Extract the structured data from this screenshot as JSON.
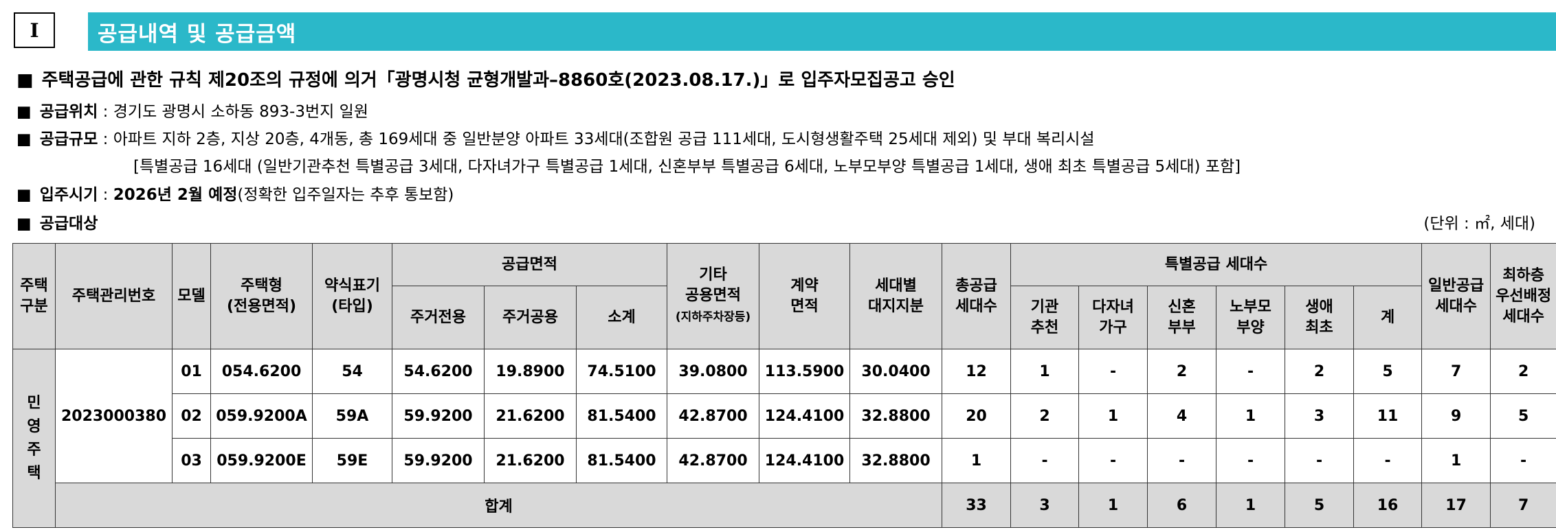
{
  "section": {
    "number": "I",
    "title": "공급내역 및 공급금액"
  },
  "approval": "주택공급에 관한 규칙 제20조의 규정에 의거「광명시청 균형개발과–8860호(2023.08.17.)」로 입주자모집공고 승인",
  "location": {
    "label": "공급위치",
    "value": "경기도 광명시 소하동 893-3번지 일원"
  },
  "scale": {
    "label": "공급규모",
    "value": "아파트 지하 2층, 지상 20층, 4개동, 총 169세대 중 일반분양 아파트 33세대(조합원 공급 111세대, 도시형생활주택 25세대 제외) 및 부대 복리시설",
    "detail": "[특별공급 16세대 (일반기관추천 특별공급 3세대, 다자녀가구 특별공급 1세대, 신혼부부 특별공급 6세대, 노부모부양 특별공급 1세대, 생애 최초 특별공급 5세대) 포함]"
  },
  "movein": {
    "label": "입주시기",
    "bold": "2026년 2월 예정",
    "note": "(정확한 입주일자는 추후 통보함)"
  },
  "target": {
    "label": "공급대상",
    "unit": "(단위 : ㎡, 세대)"
  },
  "table": {
    "headers": {
      "category": [
        "주택",
        "구분"
      ],
      "mgmt_no": "주택관리번호",
      "model": "모델",
      "type": [
        "주택형",
        "(전용면적)"
      ],
      "abbr": [
        "약식표기",
        "(타입)"
      ],
      "supply_area": "공급면적",
      "excl": "주거전용",
      "common": "주거공용",
      "subtotal": "소계",
      "other": [
        "기타",
        "공용면적",
        "(지하주차장등)"
      ],
      "contract": [
        "계약",
        "면적"
      ],
      "land": [
        "세대별",
        "대지지분"
      ],
      "total_supply": [
        "총공급",
        "세대수"
      ],
      "special": "특별공급 세대수",
      "sp_inst": [
        "기관",
        "추천"
      ],
      "sp_multi": [
        "다자녀",
        "가구"
      ],
      "sp_newly": [
        "신혼",
        "부부"
      ],
      "sp_parents": [
        "노부모",
        "부양"
      ],
      "sp_first": [
        "생애",
        "최초"
      ],
      "sp_sum": "계",
      "general": [
        "일반공급",
        "세대수"
      ],
      "lowest": [
        "최하층",
        "우선배정",
        "세대수"
      ]
    },
    "category_chars": [
      "민",
      "영",
      "주",
      "택"
    ],
    "mgmt_no": "2023000380",
    "rows": [
      {
        "model": "01",
        "type": "054.6200",
        "abbr": "54",
        "excl": "54.6200",
        "common": "19.8900",
        "subtotal": "74.5100",
        "other": "39.0800",
        "contract": "113.5900",
        "land": "30.0400",
        "total": "12",
        "inst": "1",
        "multi": "-",
        "newly": "2",
        "parents": "-",
        "first": "2",
        "sum": "5",
        "general": "7",
        "lowest": "2"
      },
      {
        "model": "02",
        "type": "059.9200A",
        "abbr": "59A",
        "excl": "59.9200",
        "common": "21.6200",
        "subtotal": "81.5400",
        "other": "42.8700",
        "contract": "124.4100",
        "land": "32.8800",
        "total": "20",
        "inst": "2",
        "multi": "1",
        "newly": "4",
        "parents": "1",
        "first": "3",
        "sum": "11",
        "general": "9",
        "lowest": "5"
      },
      {
        "model": "03",
        "type": "059.9200E",
        "abbr": "59E",
        "excl": "59.9200",
        "common": "21.6200",
        "subtotal": "81.5400",
        "other": "42.8700",
        "contract": "124.4100",
        "land": "32.8800",
        "total": "1",
        "inst": "-",
        "multi": "-",
        "newly": "-",
        "parents": "-",
        "first": "-",
        "sum": "-",
        "general": "1",
        "lowest": "-"
      }
    ],
    "total_row": {
      "label": "합계",
      "total": "33",
      "inst": "3",
      "multi": "1",
      "newly": "6",
      "parents": "1",
      "first": "5",
      "sum": "16",
      "general": "17",
      "lowest": "7"
    }
  }
}
